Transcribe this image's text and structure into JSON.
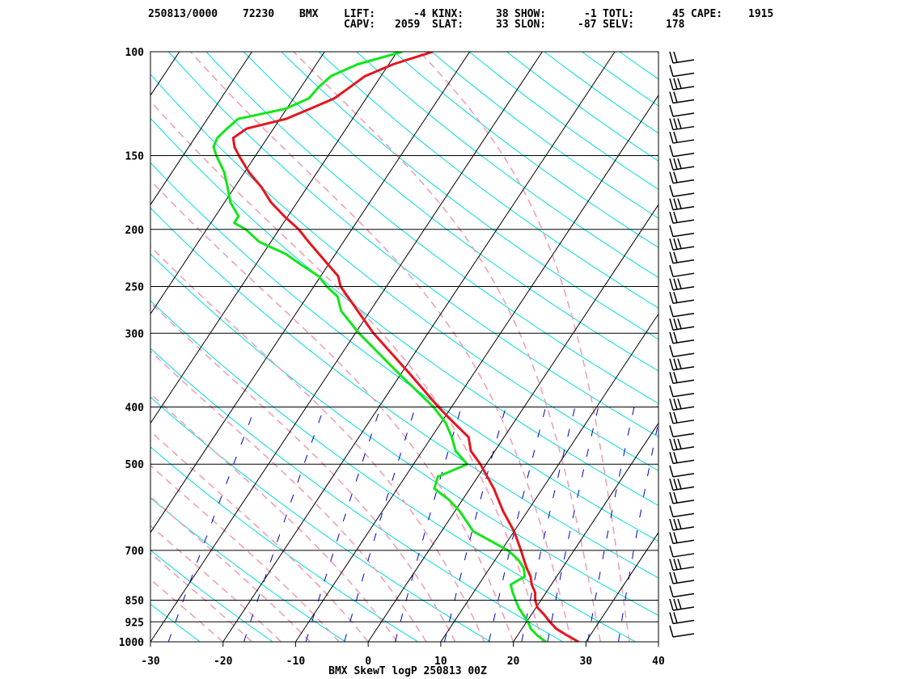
{
  "header": {
    "line1": [
      {
        "key": "date",
        "text": "250813/0000"
      },
      {
        "key": "station_id",
        "text": "72230"
      },
      {
        "key": "station",
        "text": "BMX"
      },
      {
        "key": "lift_label",
        "text": "LIFT:"
      },
      {
        "key": "lift_value",
        "text": "-4"
      },
      {
        "key": "kinx_label",
        "text": "KINX:"
      },
      {
        "key": "kinx_value",
        "text": "38"
      },
      {
        "key": "show_label",
        "text": "SHOW:"
      },
      {
        "key": "show_value",
        "text": "-1"
      },
      {
        "key": "totl_label",
        "text": "TOTL:"
      },
      {
        "key": "totl_value",
        "text": "45"
      },
      {
        "key": "cape_label",
        "text": "CAPE:"
      },
      {
        "key": "cape_value",
        "text": "1915"
      }
    ],
    "line2": [
      {
        "key": "capv_label",
        "text": "CAPV:"
      },
      {
        "key": "capv_value",
        "text": "2059"
      },
      {
        "key": "slat_label",
        "text": "SLAT:"
      },
      {
        "key": "slat_value",
        "text": "33"
      },
      {
        "key": "slon_label",
        "text": "SLON:"
      },
      {
        "key": "slon_value",
        "text": "-87"
      },
      {
        "key": "selv_label",
        "text": "SELV:"
      },
      {
        "key": "selv_value",
        "text": "178"
      }
    ]
  },
  "chart_data": {
    "type": "line",
    "subtype": "skew-t log-p diagram",
    "xlabel": "BMX SkewT logP 250813 00Z",
    "ylabel": "",
    "x_units": "degC",
    "y_units": "hPa",
    "y_scale": "log",
    "y_inverted": true,
    "xlim": [
      -30,
      40
    ],
    "ylim": [
      1000,
      100
    ],
    "x_ticks": [
      "-30",
      "-20",
      "-10",
      "0",
      "10",
      "20",
      "30",
      "40"
    ],
    "pressure_levels": [
      "1000",
      "925",
      "850",
      "700",
      "500",
      "400",
      "300",
      "250",
      "200",
      "150",
      "100"
    ],
    "grid": true,
    "colors": {
      "temperature": "#e8141e",
      "dewpoint": "#12e61a",
      "isotherms": "#000000",
      "isobars": "#000000",
      "dry_adiabats": "#00dcdc",
      "moist_adiabats": "#f0a0b4",
      "mixing_ratio": "#0000c8",
      "wind_barbs": "#000000"
    },
    "series": [
      {
        "key": "temperature",
        "p": [
          1000,
          975,
          950,
          925,
          900,
          875,
          850,
          825,
          800,
          775,
          750,
          725,
          700,
          650,
          600,
          550,
          500,
          475,
          450,
          425,
          400,
          350,
          300,
          275,
          250,
          240,
          230,
          220,
          210,
          200,
          190,
          180,
          170,
          160,
          150,
          145,
          140,
          135,
          130,
          125,
          120,
          115,
          110,
          105,
          100
        ],
        "t": [
          29,
          26.8,
          24.7,
          23.2,
          21.8,
          20.2,
          19.2,
          18.5,
          17.3,
          16.4,
          15.1,
          13.9,
          12.7,
          10,
          6.6,
          3.3,
          -0.8,
          -3.3,
          -4.9,
          -8.3,
          -11.8,
          -19,
          -27.5,
          -31.7,
          -36.3,
          -37.6,
          -39.9,
          -42.3,
          -44.8,
          -47.3,
          -50.5,
          -53.6,
          -56.2,
          -59.4,
          -62.3,
          -63.7,
          -64.7,
          -63.7,
          -59.2,
          -56.8,
          -54.4,
          -53.3,
          -52.2,
          -49.4,
          -45.1
        ]
      },
      {
        "key": "dewpoint",
        "p": [
          1000,
          975,
          950,
          925,
          900,
          875,
          850,
          825,
          800,
          775,
          750,
          725,
          700,
          650,
          600,
          575,
          550,
          525,
          500,
          475,
          450,
          425,
          400,
          350,
          300,
          275,
          260,
          250,
          240,
          230,
          220,
          210,
          200,
          195,
          190,
          180,
          170,
          160,
          150,
          145,
          140,
          135,
          130,
          125,
          120,
          115,
          110,
          105,
          100
        ],
        "t": [
          24.5,
          22.7,
          21.2,
          20.2,
          18.9,
          17.6,
          16.5,
          15.4,
          14.4,
          15.6,
          14.7,
          13.1,
          10.9,
          4.4,
          0.6,
          -1.8,
          -4.9,
          -5.5,
          -2.6,
          -5.4,
          -7.2,
          -9.4,
          -12.5,
          -20.5,
          -29.5,
          -34,
          -35.8,
          -38.2,
          -40.3,
          -43.6,
          -46.9,
          -51.6,
          -54.6,
          -56.8,
          -56.8,
          -59.2,
          -60.9,
          -62.8,
          -65.4,
          -66.6,
          -66.9,
          -66.4,
          -65.8,
          -60.2,
          -57.9,
          -57.6,
          -56.9,
          -54.3,
          -49.3
        ]
      }
    ],
    "wind_barbs_count": 44
  }
}
